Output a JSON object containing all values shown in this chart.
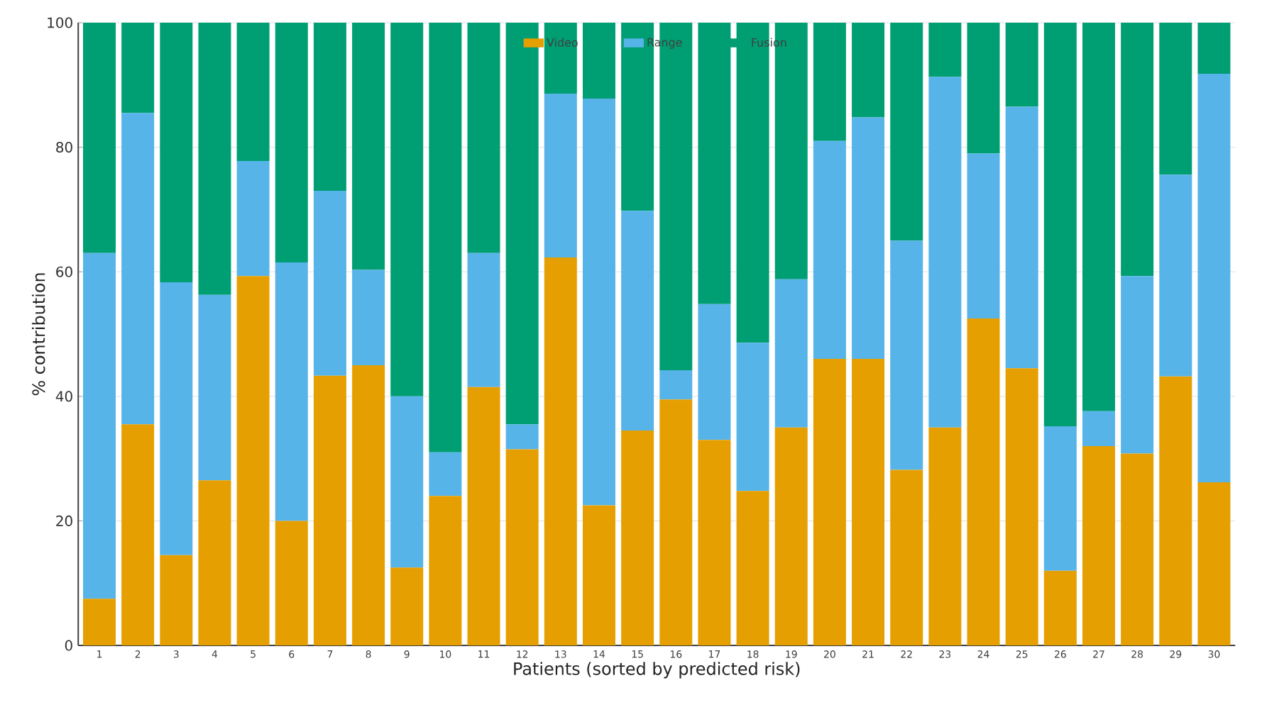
{
  "chart_data": {
    "type": "bar",
    "stacked": true,
    "xlabel": "Patients (sorted by predicted risk)",
    "ylabel": "% contribution",
    "categories": [
      "1",
      "2",
      "3",
      "4",
      "5",
      "6",
      "7",
      "8",
      "9",
      "10",
      "11",
      "12",
      "13",
      "14",
      "15",
      "16",
      "17",
      "18",
      "19",
      "20",
      "21",
      "22",
      "23",
      "24",
      "25",
      "26",
      "27",
      "28",
      "29",
      "30"
    ],
    "series": [
      {
        "name": "Video",
        "color": "#e69f00",
        "values": [
          7.5,
          35.5,
          14.5,
          26.5,
          59.3,
          20,
          43.3,
          45,
          12.5,
          24,
          41.5,
          31.5,
          62.3,
          22.5,
          34.5,
          39.5,
          33,
          24.8,
          35,
          46,
          46,
          28.2,
          35,
          52.5,
          44.5,
          12,
          32,
          30.8,
          43.2,
          26.2
        ]
      },
      {
        "name": "Range",
        "color": "#56b4e9",
        "values": [
          55.5,
          50,
          43.8,
          29.8,
          18.5,
          41.5,
          29.7,
          15.3,
          27.5,
          7,
          21.5,
          4,
          26.3,
          65.3,
          35.3,
          4.7,
          21.8,
          23.8,
          23.8,
          35,
          38.8,
          36.8,
          56.3,
          26.5,
          42,
          23.2,
          5.6,
          28.5,
          32.4,
          65.6
        ]
      },
      {
        "name": "Fusion",
        "color": "#009e73",
        "values": [
          37,
          14.5,
          41.7,
          43.7,
          22.2,
          38.5,
          27,
          39.7,
          60,
          69,
          37,
          64.5,
          11.4,
          12.2,
          30.2,
          55.8,
          45.2,
          51.4,
          41.2,
          19,
          15.2,
          35,
          8.7,
          21,
          13.5,
          64.8,
          62.4,
          40.7,
          24.4,
          8.2
        ]
      }
    ],
    "ylim": [
      0,
      100
    ],
    "yticks": [
      0,
      20,
      40,
      60,
      80,
      100
    ],
    "grid": true,
    "legend": "top"
  }
}
